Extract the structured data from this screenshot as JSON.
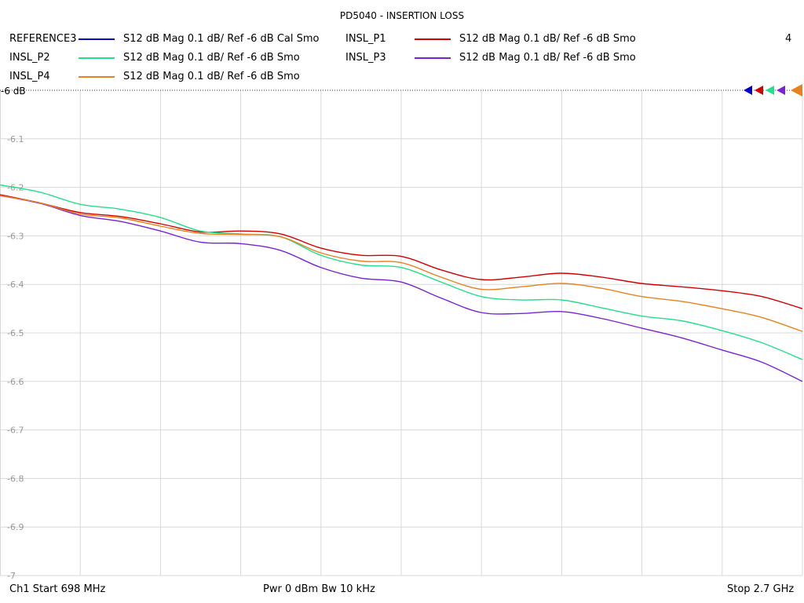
{
  "header": {
    "title": "PD5040 - INSERTION LOSS",
    "channel_number": "4"
  },
  "footer": {
    "start": "Ch1  Start  698 MHz",
    "center": "Pwr  0 dBm  Bw  10 kHz",
    "stop": "Stop  2.7 GHz"
  },
  "legend": [
    {
      "name": "REFERENCE3",
      "desc": "S12  dB Mag  0.1 dB/ Ref -6 dB  Cal Smo",
      "color": "#0000c8"
    },
    {
      "name": "INSL_P1",
      "desc": "S12  dB Mag  0.1 dB/ Ref -6 dB  Smo",
      "color": "#d40000"
    },
    {
      "name": "INSL_P2",
      "desc": "S12  dB Mag  0.1 dB/ Ref -6 dB  Smo",
      "color": "#22e08a"
    },
    {
      "name": "INSL_P3",
      "desc": "S12  dB Mag  0.1 dB/ Ref -6 dB  Smo",
      "color": "#7a22d8"
    },
    {
      "name": "INSL_P4",
      "desc": "S12  dB Mag  0.1 dB/ Ref -6 dB  Smo",
      "color": "#e8821e"
    }
  ],
  "chart_data": {
    "type": "line",
    "title": "PD5040 - INSERTION LOSS",
    "xlabel": "",
    "ylabel": "",
    "xlim": [
      698,
      2700
    ],
    "ylim": [
      -7,
      -6
    ],
    "x_unit": "MHz",
    "ref_label": "-6 dB",
    "y_ticks": [
      "-6.1",
      "-6.2",
      "-6.3",
      "-6.4",
      "-6.5",
      "-6.6",
      "-6.7",
      "-6.8",
      "-6.9",
      "-7"
    ],
    "y_tick_values": [
      -6.1,
      -6.2,
      -6.3,
      -6.4,
      -6.5,
      -6.6,
      -6.7,
      -6.8,
      -6.9,
      -7.0
    ],
    "grid": true,
    "x": [
      698,
      798,
      898,
      998,
      1098,
      1198,
      1298,
      1398,
      1498,
      1598,
      1698,
      1798,
      1898,
      1998,
      2098,
      2198,
      2298,
      2398,
      2498,
      2598,
      2700
    ],
    "series": [
      {
        "name": "INSL_P1",
        "color": "#d40000",
        "values": [
          -6.215,
          -6.232,
          -6.252,
          -6.26,
          -6.275,
          -6.292,
          -6.29,
          -6.296,
          -6.325,
          -6.34,
          -6.342,
          -6.37,
          -6.39,
          -6.385,
          -6.377,
          -6.385,
          -6.398,
          -6.405,
          -6.413,
          -6.425,
          -6.45
        ]
      },
      {
        "name": "INSL_P2",
        "color": "#22e08a",
        "values": [
          -6.195,
          -6.21,
          -6.235,
          -6.245,
          -6.262,
          -6.29,
          -6.296,
          -6.302,
          -6.34,
          -6.36,
          -6.365,
          -6.395,
          -6.425,
          -6.432,
          -6.432,
          -6.448,
          -6.465,
          -6.475,
          -6.495,
          -6.52,
          -6.555
        ]
      },
      {
        "name": "INSL_P3",
        "color": "#7a22d8",
        "values": [
          -6.217,
          -6.233,
          -6.258,
          -6.27,
          -6.29,
          -6.313,
          -6.316,
          -6.33,
          -6.365,
          -6.387,
          -6.395,
          -6.428,
          -6.458,
          -6.46,
          -6.456,
          -6.47,
          -6.49,
          -6.51,
          -6.535,
          -6.56,
          -6.6
        ]
      },
      {
        "name": "INSL_P4",
        "color": "#e8821e",
        "values": [
          -6.217,
          -6.232,
          -6.255,
          -6.263,
          -6.28,
          -6.295,
          -6.297,
          -6.302,
          -6.335,
          -6.352,
          -6.355,
          -6.385,
          -6.41,
          -6.405,
          -6.398,
          -6.408,
          -6.425,
          -6.435,
          -6.45,
          -6.468,
          -6.497
        ]
      }
    ]
  }
}
